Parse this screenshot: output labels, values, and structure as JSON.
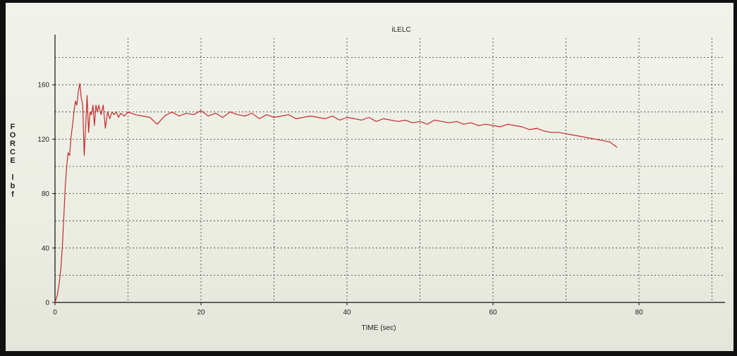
{
  "chart_data": {
    "type": "line",
    "title": "iLELC",
    "xlabel": "TIME (sec)",
    "ylabel_letters": [
      "F",
      "O",
      "R",
      "C",
      "E",
      "",
      "l",
      "b",
      "f"
    ],
    "xlim": [
      0,
      90
    ],
    "ylim": [
      0,
      180
    ],
    "xticks": [
      0,
      20,
      40,
      60,
      80
    ],
    "yticks": [
      0,
      40,
      80,
      120,
      160
    ],
    "grid": true,
    "series": [
      {
        "color": "#c62a2a",
        "x": [
          0,
          0.3,
          0.6,
          0.8,
          1.0,
          1.2,
          1.4,
          1.6,
          1.8,
          2.0,
          2.2,
          2.4,
          2.6,
          2.8,
          3.0,
          3.2,
          3.4,
          3.6,
          3.8,
          4.0,
          4.2,
          4.4,
          4.6,
          4.8,
          5.0,
          5.2,
          5.4,
          5.6,
          5.8,
          6.0,
          6.3,
          6.6,
          6.9,
          7.2,
          7.5,
          7.8,
          8.1,
          8.4,
          8.7,
          9.0,
          9.5,
          10,
          11,
          12,
          13,
          14,
          15,
          16,
          17,
          18,
          19,
          20,
          21,
          22,
          23,
          24,
          25,
          26,
          27,
          28,
          29,
          30,
          31,
          32,
          33,
          34,
          35,
          36,
          37,
          38,
          39,
          40,
          41,
          42,
          43,
          44,
          45,
          46,
          47,
          48,
          49,
          50,
          51,
          52,
          53,
          54,
          55,
          56,
          57,
          58,
          59,
          60,
          61,
          62,
          63,
          64,
          65,
          66,
          67,
          68,
          69,
          70,
          71,
          72,
          73,
          74,
          75,
          76,
          77
        ],
        "y": [
          0,
          5,
          15,
          25,
          40,
          62,
          85,
          100,
          110,
          108,
          122,
          130,
          140,
          148,
          145,
          155,
          161,
          150,
          145,
          108,
          130,
          152,
          125,
          140,
          138,
          145,
          130,
          145,
          140,
          145,
          138,
          145,
          128,
          140,
          135,
          140,
          138,
          140,
          136,
          139,
          137,
          140,
          138,
          137,
          136,
          131,
          137,
          140,
          137,
          139,
          138,
          141,
          137,
          139,
          136,
          140,
          138,
          137,
          139,
          135,
          138,
          136,
          137,
          138,
          135,
          136,
          137,
          136,
          135,
          137,
          134,
          136,
          135,
          134,
          136,
          133,
          135,
          134,
          133,
          134,
          132,
          133,
          131,
          134,
          133,
          132,
          133,
          131,
          132,
          130,
          131,
          130,
          129,
          131,
          130,
          129,
          127,
          128,
          126,
          125,
          125,
          124,
          123,
          122,
          121,
          120,
          119,
          118,
          114
        ]
      }
    ]
  }
}
